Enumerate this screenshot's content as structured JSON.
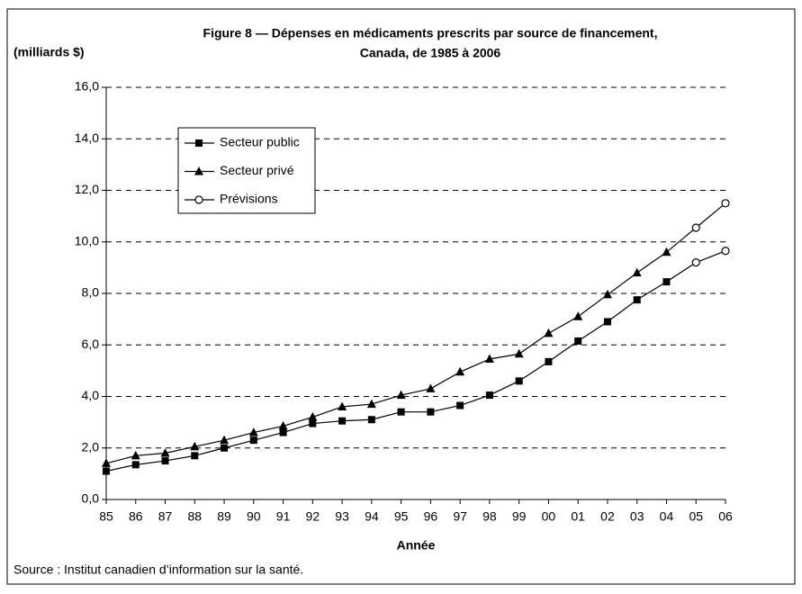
{
  "chart_data": {
    "type": "line",
    "title": [
      "Figure 8 — Dépenses en médicaments prescrits par source de financement,",
      "Canada, de 1985 à 2006"
    ],
    "y_label": "(milliards $)",
    "x_label": "Année",
    "source": "Source : Institut canadien d’information sur la santé.",
    "categories": [
      "85",
      "86",
      "87",
      "88",
      "89",
      "90",
      "91",
      "92",
      "93",
      "94",
      "95",
      "96",
      "97",
      "98",
      "99",
      "00",
      "01",
      "02",
      "03",
      "04",
      "05",
      "06"
    ],
    "series": [
      {
        "name": "Secteur public",
        "color": "#000000",
        "marker": "square",
        "values": [
          1.1,
          1.35,
          1.5,
          1.7,
          2.0,
          2.3,
          2.6,
          2.95,
          3.05,
          3.1,
          3.4,
          3.4,
          3.65,
          4.05,
          4.6,
          5.35,
          6.15,
          6.9,
          7.75,
          8.45,
          null,
          null
        ]
      },
      {
        "name": "Secteur privé",
        "color": "#000000",
        "marker": "triangle",
        "values": [
          1.4,
          1.7,
          1.8,
          2.05,
          2.3,
          2.6,
          2.85,
          3.2,
          3.6,
          3.7,
          4.05,
          4.3,
          4.95,
          5.45,
          5.65,
          6.45,
          7.1,
          7.95,
          8.8,
          9.6,
          null,
          null
        ]
      },
      {
        "name": "Prévisions",
        "color": "#000000",
        "marker": "circle",
        "values": [
          [
            null,
            null,
            null,
            null,
            null,
            null,
            null,
            null,
            null,
            null,
            null,
            null,
            null,
            null,
            null,
            null,
            null,
            null,
            null,
            null,
            9.2,
            9.65
          ],
          [
            null,
            null,
            null,
            null,
            null,
            null,
            null,
            null,
            null,
            null,
            null,
            null,
            null,
            null,
            null,
            null,
            null,
            null,
            null,
            null,
            10.55,
            11.5
          ]
        ]
      }
    ],
    "ylim": [
      0,
      16
    ],
    "yticks": [
      {
        "value": 0,
        "label": "0,0"
      },
      {
        "value": 2,
        "label": "2,0"
      },
      {
        "value": 4,
        "label": "4,0"
      },
      {
        "value": 6,
        "label": "6,0"
      },
      {
        "value": 8,
        "label": "8,0"
      },
      {
        "value": 10,
        "label": "10,0"
      },
      {
        "value": 12,
        "label": "12,0"
      },
      {
        "value": 14,
        "label": "14,0"
      },
      {
        "value": 16,
        "label": "16,0"
      }
    ],
    "grid": true,
    "grid_style": "dashed",
    "legend": "upper-left"
  }
}
